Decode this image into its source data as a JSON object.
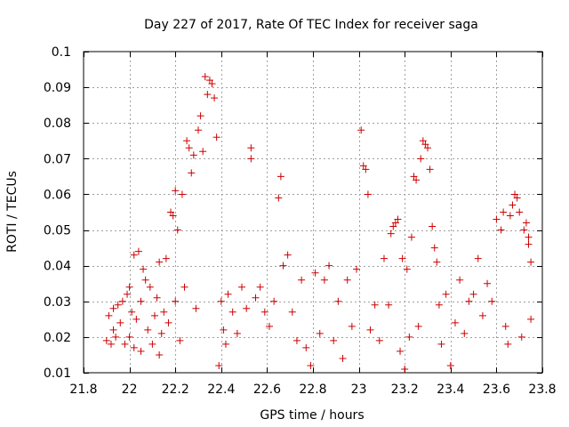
{
  "chart_data": {
    "type": "scatter",
    "title": "Day 227 of 2017, Rate Of TEC Index for receiver saga",
    "xlabel": "GPS time / hours",
    "ylabel": "ROTI / TECUs",
    "xlim": [
      21.8,
      23.8
    ],
    "ylim": [
      0.01,
      0.1
    ],
    "xticks": [
      21.8,
      22.0,
      22.2,
      22.4,
      22.6,
      22.8,
      23.0,
      23.2,
      23.4,
      23.6,
      23.8
    ],
    "xtick_labels": [
      "21.8",
      "22",
      "22.2",
      "22.4",
      "22.6",
      "22.8",
      "23",
      "23.2",
      "23.4",
      "23.6",
      "23.8"
    ],
    "yticks": [
      0.01,
      0.02,
      0.03,
      0.04,
      0.05,
      0.06,
      0.07,
      0.08,
      0.09,
      0.1
    ],
    "ytick_labels": [
      "0.01",
      "0.02",
      "0.03",
      "0.04",
      "0.05",
      "0.06",
      "0.07",
      "0.08",
      "0.09",
      "0.1"
    ],
    "grid": true,
    "marker": "+",
    "color": "#cc0000",
    "series": [
      {
        "name": "ROTI",
        "points": [
          [
            21.9,
            0.019
          ],
          [
            21.91,
            0.026
          ],
          [
            21.92,
            0.018
          ],
          [
            21.93,
            0.022
          ],
          [
            21.93,
            0.028
          ],
          [
            21.94,
            0.02
          ],
          [
            21.95,
            0.029
          ],
          [
            21.96,
            0.024
          ],
          [
            21.97,
            0.03
          ],
          [
            21.98,
            0.018
          ],
          [
            21.99,
            0.032
          ],
          [
            22.0,
            0.034
          ],
          [
            22.0,
            0.02
          ],
          [
            22.01,
            0.027
          ],
          [
            22.02,
            0.017
          ],
          [
            22.02,
            0.043
          ],
          [
            22.03,
            0.025
          ],
          [
            22.04,
            0.044
          ],
          [
            22.05,
            0.03
          ],
          [
            22.05,
            0.016
          ],
          [
            22.06,
            0.039
          ],
          [
            22.07,
            0.036
          ],
          [
            22.08,
            0.022
          ],
          [
            22.09,
            0.034
          ],
          [
            22.1,
            0.018
          ],
          [
            22.11,
            0.026
          ],
          [
            22.12,
            0.031
          ],
          [
            22.13,
            0.015
          ],
          [
            22.13,
            0.041
          ],
          [
            22.14,
            0.021
          ],
          [
            22.15,
            0.027
          ],
          [
            22.16,
            0.042
          ],
          [
            22.17,
            0.024
          ],
          [
            22.18,
            0.055
          ],
          [
            22.19,
            0.054
          ],
          [
            22.2,
            0.061
          ],
          [
            22.2,
            0.03
          ],
          [
            22.21,
            0.05
          ],
          [
            22.22,
            0.019
          ],
          [
            22.23,
            0.06
          ],
          [
            22.24,
            0.034
          ],
          [
            22.25,
            0.075
          ],
          [
            22.26,
            0.073
          ],
          [
            22.27,
            0.066
          ],
          [
            22.28,
            0.071
          ],
          [
            22.29,
            0.028
          ],
          [
            22.3,
            0.078
          ],
          [
            22.31,
            0.082
          ],
          [
            22.32,
            0.072
          ],
          [
            22.33,
            0.093
          ],
          [
            22.34,
            0.088
          ],
          [
            22.35,
            0.092
          ],
          [
            22.36,
            0.091
          ],
          [
            22.37,
            0.087
          ],
          [
            22.38,
            0.076
          ],
          [
            22.39,
            0.012
          ],
          [
            22.4,
            0.03
          ],
          [
            22.41,
            0.022
          ],
          [
            22.42,
            0.018
          ],
          [
            22.43,
            0.032
          ],
          [
            22.45,
            0.027
          ],
          [
            22.47,
            0.021
          ],
          [
            22.49,
            0.034
          ],
          [
            22.51,
            0.028
          ],
          [
            22.53,
            0.073
          ],
          [
            22.53,
            0.07
          ],
          [
            22.55,
            0.031
          ],
          [
            22.57,
            0.034
          ],
          [
            22.59,
            0.027
          ],
          [
            22.61,
            0.023
          ],
          [
            22.63,
            0.03
          ],
          [
            22.65,
            0.059
          ],
          [
            22.66,
            0.065
          ],
          [
            22.67,
            0.04
          ],
          [
            22.69,
            0.043
          ],
          [
            22.71,
            0.027
          ],
          [
            22.73,
            0.019
          ],
          [
            22.75,
            0.036
          ],
          [
            22.77,
            0.017
          ],
          [
            22.79,
            0.012
          ],
          [
            22.81,
            0.038
          ],
          [
            22.83,
            0.021
          ],
          [
            22.85,
            0.036
          ],
          [
            22.87,
            0.04
          ],
          [
            22.89,
            0.019
          ],
          [
            22.91,
            0.03
          ],
          [
            22.93,
            0.014
          ],
          [
            22.95,
            0.036
          ],
          [
            22.97,
            0.023
          ],
          [
            22.99,
            0.039
          ],
          [
            23.01,
            0.078
          ],
          [
            23.02,
            0.068
          ],
          [
            23.03,
            0.067
          ],
          [
            23.04,
            0.06
          ],
          [
            23.05,
            0.022
          ],
          [
            23.07,
            0.029
          ],
          [
            23.09,
            0.019
          ],
          [
            23.11,
            0.042
          ],
          [
            23.13,
            0.029
          ],
          [
            23.14,
            0.049
          ],
          [
            23.15,
            0.051
          ],
          [
            23.16,
            0.052
          ],
          [
            23.17,
            0.053
          ],
          [
            23.18,
            0.016
          ],
          [
            23.19,
            0.042
          ],
          [
            23.2,
            0.011
          ],
          [
            23.21,
            0.039
          ],
          [
            23.22,
            0.02
          ],
          [
            23.23,
            0.048
          ],
          [
            23.24,
            0.065
          ],
          [
            23.25,
            0.064
          ],
          [
            23.26,
            0.023
          ],
          [
            23.27,
            0.07
          ],
          [
            23.28,
            0.075
          ],
          [
            23.29,
            0.074
          ],
          [
            23.3,
            0.073
          ],
          [
            23.31,
            0.067
          ],
          [
            23.32,
            0.051
          ],
          [
            23.33,
            0.045
          ],
          [
            23.34,
            0.041
          ],
          [
            23.35,
            0.029
          ],
          [
            23.36,
            0.018
          ],
          [
            23.38,
            0.032
          ],
          [
            23.4,
            0.012
          ],
          [
            23.42,
            0.024
          ],
          [
            23.44,
            0.036
          ],
          [
            23.46,
            0.021
          ],
          [
            23.48,
            0.03
          ],
          [
            23.5,
            0.032
          ],
          [
            23.52,
            0.042
          ],
          [
            23.54,
            0.026
          ],
          [
            23.56,
            0.035
          ],
          [
            23.58,
            0.03
          ],
          [
            23.6,
            0.053
          ],
          [
            23.62,
            0.05
          ],
          [
            23.63,
            0.055
          ],
          [
            23.64,
            0.023
          ],
          [
            23.65,
            0.018
          ],
          [
            23.66,
            0.054
          ],
          [
            23.67,
            0.057
          ],
          [
            23.68,
            0.06
          ],
          [
            23.69,
            0.059
          ],
          [
            23.7,
            0.055
          ],
          [
            23.71,
            0.02
          ],
          [
            23.72,
            0.05
          ],
          [
            23.73,
            0.052
          ],
          [
            23.74,
            0.048
          ],
          [
            23.75,
            0.041
          ],
          [
            23.75,
            0.025
          ],
          [
            23.74,
            0.046
          ]
        ]
      }
    ]
  }
}
